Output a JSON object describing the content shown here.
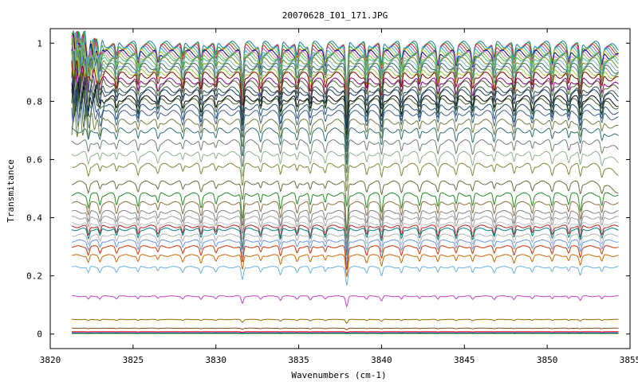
{
  "chart_data": {
    "type": "line",
    "title": "20070628_I01_171.JPG",
    "xlabel": "Wavenumbers (cm-1)",
    "ylabel": "Transmitance",
    "xlim": [
      3820,
      3855
    ],
    "ylim": [
      -0.05,
      1.05
    ],
    "grid": false,
    "legend": "none",
    "x_ticks": [
      3820,
      3825,
      3830,
      3835,
      3840,
      3845,
      3850,
      3855
    ],
    "x_tick_labels": [
      "3820",
      "3825",
      "3830",
      "3835",
      "3840",
      "3845",
      "3850",
      "3855"
    ],
    "y_ticks": [
      0,
      0.2,
      0.4,
      0.6,
      0.8,
      1
    ],
    "y_tick_labels": [
      "0",
      "0.2",
      "0.4",
      "0.6",
      "0.8",
      "1"
    ],
    "x_range": [
      3821.3,
      3854.3
    ],
    "absorption_lines": [
      {
        "x": 3822.3,
        "depth": 0.25
      },
      {
        "x": 3823.0,
        "depth": 0.2
      },
      {
        "x": 3824.0,
        "depth": 0.2
      },
      {
        "x": 3825.3,
        "depth": 0.22
      },
      {
        "x": 3826.5,
        "depth": 0.18
      },
      {
        "x": 3828.0,
        "depth": 0.2
      },
      {
        "x": 3829.1,
        "depth": 0.25
      },
      {
        "x": 3830.0,
        "depth": 0.18
      },
      {
        "x": 3831.6,
        "depth": 0.55
      },
      {
        "x": 3832.7,
        "depth": 0.2
      },
      {
        "x": 3833.9,
        "depth": 0.3
      },
      {
        "x": 3834.9,
        "depth": 0.2
      },
      {
        "x": 3835.7,
        "depth": 0.25
      },
      {
        "x": 3836.6,
        "depth": 0.2
      },
      {
        "x": 3837.9,
        "depth": 0.75
      },
      {
        "x": 3839.1,
        "depth": 0.25
      },
      {
        "x": 3840.0,
        "depth": 0.35
      },
      {
        "x": 3841.2,
        "depth": 0.25
      },
      {
        "x": 3842.3,
        "depth": 0.22
      },
      {
        "x": 3843.4,
        "depth": 0.25
      },
      {
        "x": 3844.5,
        "depth": 0.22
      },
      {
        "x": 3845.5,
        "depth": 0.25
      },
      {
        "x": 3846.8,
        "depth": 0.22
      },
      {
        "x": 3848.0,
        "depth": 0.25
      },
      {
        "x": 3849.1,
        "depth": 0.2
      },
      {
        "x": 3850.3,
        "depth": 0.22
      },
      {
        "x": 3851.3,
        "depth": 0.2
      },
      {
        "x": 3852.0,
        "depth": 0.32
      },
      {
        "x": 3853.3,
        "depth": 0.22
      }
    ],
    "series": [
      {
        "baseline": 0.995,
        "color": "#1f77b4"
      },
      {
        "baseline": 0.99,
        "color": "#2ca02c"
      },
      {
        "baseline": 0.985,
        "color": "#d62728"
      },
      {
        "baseline": 0.98,
        "color": "#9467bd"
      },
      {
        "baseline": 0.975,
        "color": "#17becf"
      },
      {
        "baseline": 0.97,
        "color": "#bcbd22"
      },
      {
        "baseline": 0.965,
        "color": "#00008b"
      },
      {
        "baseline": 0.96,
        "color": "#e377c2"
      },
      {
        "baseline": 0.955,
        "color": "#7fbf3f"
      },
      {
        "baseline": 0.95,
        "color": "#3fbf7f"
      },
      {
        "baseline": 0.94,
        "color": "#6b8e23"
      },
      {
        "baseline": 0.93,
        "color": "#7fb2d6"
      },
      {
        "baseline": 0.92,
        "color": "#2f6f4f"
      },
      {
        "baseline": 0.91,
        "color": "#708090"
      },
      {
        "baseline": 0.9,
        "color": "#9acd32"
      },
      {
        "baseline": 0.89,
        "color": "#8b0000"
      },
      {
        "baseline": 0.87,
        "color": "#8b008b"
      },
      {
        "baseline": 0.86,
        "color": "#556b2f"
      },
      {
        "baseline": 0.84,
        "color": "#2f4f4f"
      },
      {
        "baseline": 0.83,
        "color": "#1e3a5f"
      },
      {
        "baseline": 0.81,
        "color": "#000000"
      },
      {
        "baseline": 0.8,
        "color": "#3a5f2a"
      },
      {
        "baseline": 0.78,
        "color": "#1f4f7f"
      },
      {
        "baseline": 0.76,
        "color": "#406080"
      },
      {
        "baseline": 0.73,
        "color": "#6b7f3f"
      },
      {
        "baseline": 0.7,
        "color": "#2e6f6f"
      },
      {
        "baseline": 0.66,
        "color": "#708070"
      },
      {
        "baseline": 0.62,
        "color": "#8faf8f"
      },
      {
        "baseline": 0.58,
        "color": "#7a8b3a"
      },
      {
        "baseline": 0.52,
        "color": "#6b6b3f"
      },
      {
        "baseline": 0.48,
        "color": "#228b22"
      },
      {
        "baseline": 0.45,
        "color": "#8b6f3f"
      },
      {
        "baseline": 0.42,
        "color": "#808080"
      },
      {
        "baseline": 0.4,
        "color": "#a0a0a0"
      },
      {
        "baseline": 0.38,
        "color": "#c0c0c0"
      },
      {
        "baseline": 0.37,
        "color": "#b22222"
      },
      {
        "baseline": 0.36,
        "color": "#008080"
      },
      {
        "baseline": 0.34,
        "color": "#b0b0b0"
      },
      {
        "baseline": 0.32,
        "color": "#6495ed"
      },
      {
        "baseline": 0.3,
        "color": "#cc3300"
      },
      {
        "baseline": 0.27,
        "color": "#cc6600"
      },
      {
        "baseline": 0.23,
        "color": "#6ab0dc"
      },
      {
        "baseline": 0.13,
        "color": "#c040c0"
      },
      {
        "baseline": 0.05,
        "color": "#996600"
      },
      {
        "baseline": 0.02,
        "color": "#8b4513"
      },
      {
        "baseline": 0.008,
        "color": "#ff0000"
      },
      {
        "baseline": 0.004,
        "color": "#0000ff"
      },
      {
        "baseline": 0.002,
        "color": "#00a000"
      }
    ]
  }
}
